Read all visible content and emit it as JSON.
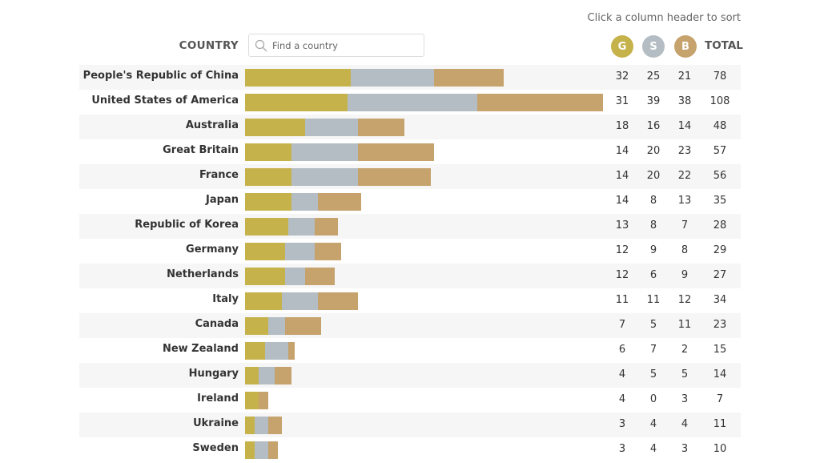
{
  "hint": "Click a column header to sort",
  "headers": {
    "country": "COUNTRY",
    "gold": "G",
    "silver": "S",
    "bronze": "B",
    "total": "TOTAL"
  },
  "search": {
    "placeholder": "Find a country",
    "value": ""
  },
  "colors": {
    "gold": "#c6b24b",
    "silver": "#b3bdc3",
    "bronze": "#c6a26c"
  },
  "chart_data": {
    "type": "bar",
    "stacked": true,
    "orientation": "horizontal",
    "series_keys": [
      "gold",
      "silver",
      "bronze"
    ],
    "rows": [
      {
        "country": "People's Republic of China",
        "gold": 32,
        "silver": 25,
        "bronze": 21,
        "total": 78
      },
      {
        "country": "United States of America",
        "gold": 31,
        "silver": 39,
        "bronze": 38,
        "total": 108
      },
      {
        "country": "Australia",
        "gold": 18,
        "silver": 16,
        "bronze": 14,
        "total": 48
      },
      {
        "country": "Great Britain",
        "gold": 14,
        "silver": 20,
        "bronze": 23,
        "total": 57
      },
      {
        "country": "France",
        "gold": 14,
        "silver": 20,
        "bronze": 22,
        "total": 56
      },
      {
        "country": "Japan",
        "gold": 14,
        "silver": 8,
        "bronze": 13,
        "total": 35
      },
      {
        "country": "Republic of Korea",
        "gold": 13,
        "silver": 8,
        "bronze": 7,
        "total": 28
      },
      {
        "country": "Germany",
        "gold": 12,
        "silver": 9,
        "bronze": 8,
        "total": 29
      },
      {
        "country": "Netherlands",
        "gold": 12,
        "silver": 6,
        "bronze": 9,
        "total": 27
      },
      {
        "country": "Italy",
        "gold": 11,
        "silver": 11,
        "bronze": 12,
        "total": 34
      },
      {
        "country": "Canada",
        "gold": 7,
        "silver": 5,
        "bronze": 11,
        "total": 23
      },
      {
        "country": "New Zealand",
        "gold": 6,
        "silver": 7,
        "bronze": 2,
        "total": 15
      },
      {
        "country": "Hungary",
        "gold": 4,
        "silver": 5,
        "bronze": 5,
        "total": 14
      },
      {
        "country": "Ireland",
        "gold": 4,
        "silver": 0,
        "bronze": 3,
        "total": 7
      },
      {
        "country": "Ukraine",
        "gold": 3,
        "silver": 4,
        "bronze": 4,
        "total": 11
      },
      {
        "country": "Sweden",
        "gold": 3,
        "silver": 4,
        "bronze": 3,
        "total": 10
      }
    ]
  }
}
